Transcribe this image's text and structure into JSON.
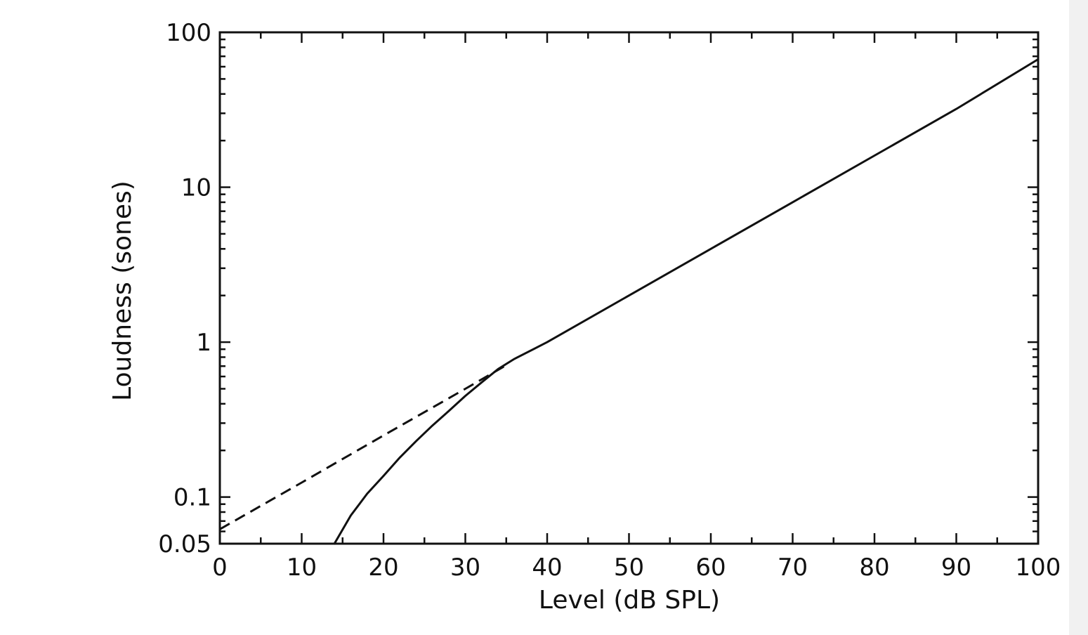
{
  "chart_data": {
    "type": "line",
    "title": "",
    "xlabel": "Level (dB SPL)",
    "ylabel": "Loudness (sones)",
    "xlim": [
      0,
      100
    ],
    "ylim": [
      0.05,
      100
    ],
    "x_scale": "linear",
    "y_scale": "log",
    "grid": false,
    "legend": "none",
    "x_ticks": [
      0,
      10,
      20,
      30,
      40,
      50,
      60,
      70,
      80,
      90,
      100
    ],
    "x_tick_labels": [
      "0",
      "10",
      "20",
      "30",
      "40",
      "50",
      "60",
      "70",
      "80",
      "90",
      "100"
    ],
    "y_ticks": [
      0.05,
      0.1,
      1,
      10,
      100
    ],
    "y_tick_labels": [
      "0.05",
      "0.1",
      "1",
      "10",
      "100"
    ],
    "series": [
      {
        "style": "solid",
        "color": "#111111",
        "x": [
          14,
          16,
          18,
          20,
          22,
          24,
          26,
          28,
          30,
          32,
          34,
          36,
          40,
          50,
          60,
          70,
          80,
          90,
          100
        ],
        "y": [
          0.05,
          0.076,
          0.105,
          0.137,
          0.18,
          0.23,
          0.29,
          0.36,
          0.45,
          0.55,
          0.67,
          0.78,
          1.0,
          2.0,
          4.0,
          8.0,
          16.0,
          32.0,
          67.0
        ]
      },
      {
        "style": "dashed",
        "color": "#111111",
        "x": [
          0,
          10,
          20,
          30,
          35
        ],
        "y": [
          0.062,
          0.124,
          0.25,
          0.5,
          0.71
        ]
      }
    ]
  }
}
